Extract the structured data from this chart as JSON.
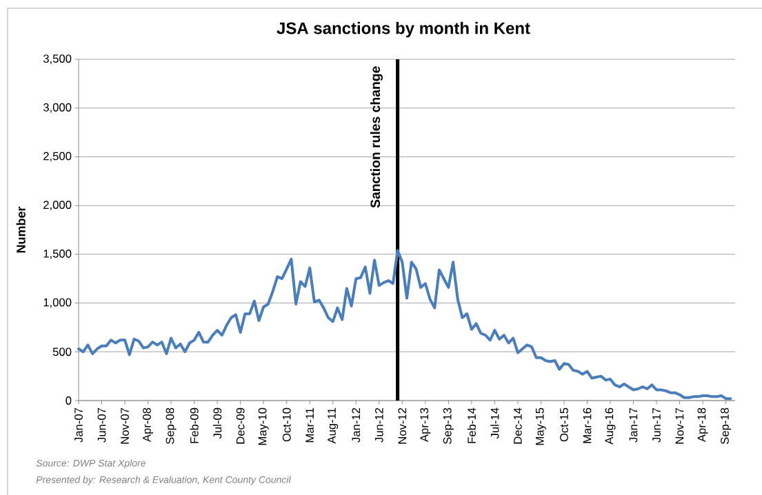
{
  "chart_data": {
    "type": "line",
    "title": "JSA sanctions by month in Kent",
    "ylabel": "Number",
    "annotations": [
      "Source: DWP Stat Xplore",
      "Presented by: Research & Evaluation, Kent County Council"
    ],
    "x": [
      "2007-01",
      "2007-02",
      "2007-03",
      "2007-04",
      "2007-05",
      "2007-06",
      "2007-07",
      "2007-08",
      "2007-09",
      "2007-10",
      "2007-11",
      "2007-12",
      "2008-01",
      "2008-02",
      "2008-03",
      "2008-04",
      "2008-05",
      "2008-06",
      "2008-07",
      "2008-08",
      "2008-09",
      "2008-10",
      "2008-11",
      "2008-12",
      "2009-01",
      "2009-02",
      "2009-03",
      "2009-04",
      "2009-05",
      "2009-06",
      "2009-07",
      "2009-08",
      "2009-09",
      "2009-10",
      "2009-11",
      "2009-12",
      "2010-01",
      "2010-02",
      "2010-03",
      "2010-04",
      "2010-05",
      "2010-06",
      "2010-07",
      "2010-08",
      "2010-09",
      "2010-10",
      "2010-11",
      "2010-12",
      "2011-01",
      "2011-02",
      "2011-03",
      "2011-04",
      "2011-05",
      "2011-06",
      "2011-07",
      "2011-08",
      "2011-09",
      "2011-10",
      "2011-11",
      "2011-12",
      "2012-01",
      "2012-02",
      "2012-03",
      "2012-04",
      "2012-05",
      "2012-06",
      "2012-07",
      "2012-08",
      "2012-09",
      "2012-10",
      "2012-11",
      "2012-12",
      "2013-01",
      "2013-02",
      "2013-03",
      "2013-04",
      "2013-05",
      "2013-06",
      "2013-07",
      "2013-08",
      "2013-09",
      "2013-10",
      "2013-11",
      "2013-12",
      "2014-01",
      "2014-02",
      "2014-03",
      "2014-04",
      "2014-05",
      "2014-06",
      "2014-07",
      "2014-08",
      "2014-09",
      "2014-10",
      "2014-11",
      "2014-12",
      "2015-01",
      "2015-02",
      "2015-03",
      "2015-04",
      "2015-05",
      "2015-06",
      "2015-07",
      "2015-08",
      "2015-09",
      "2015-10",
      "2015-11",
      "2015-12",
      "2016-01",
      "2016-02",
      "2016-03",
      "2016-04",
      "2016-05",
      "2016-06",
      "2016-07",
      "2016-08",
      "2016-09",
      "2016-10",
      "2016-11",
      "2016-12",
      "2017-01",
      "2017-02",
      "2017-03",
      "2017-04",
      "2017-05",
      "2017-06",
      "2017-07",
      "2017-08",
      "2017-09",
      "2017-10",
      "2017-11",
      "2017-12",
      "2018-01",
      "2018-02",
      "2018-03",
      "2018-04",
      "2018-05",
      "2018-06",
      "2018-07",
      "2018-08",
      "2018-09",
      "2018-10"
    ],
    "values": [
      530,
      500,
      570,
      480,
      530,
      560,
      560,
      620,
      590,
      620,
      620,
      470,
      630,
      610,
      540,
      550,
      600,
      570,
      600,
      480,
      640,
      540,
      580,
      500,
      590,
      620,
      700,
      600,
      600,
      670,
      720,
      670,
      770,
      850,
      880,
      700,
      890,
      890,
      1020,
      820,
      960,
      990,
      1120,
      1270,
      1250,
      1350,
      1450,
      990,
      1220,
      1170,
      1360,
      1010,
      1030,
      950,
      850,
      810,
      950,
      830,
      1150,
      970,
      1250,
      1260,
      1370,
      1100,
      1440,
      1180,
      1210,
      1230,
      1200,
      1540,
      1420,
      1050,
      1420,
      1350,
      1160,
      1200,
      1040,
      950,
      1340,
      1250,
      1160,
      1420,
      1040,
      850,
      890,
      730,
      790,
      690,
      670,
      620,
      720,
      630,
      670,
      590,
      640,
      490,
      530,
      570,
      550,
      440,
      440,
      410,
      400,
      410,
      320,
      380,
      370,
      310,
      300,
      270,
      300,
      230,
      240,
      250,
      210,
      220,
      160,
      140,
      170,
      140,
      110,
      120,
      140,
      120,
      160,
      110,
      110,
      100,
      80,
      80,
      60,
      30,
      30,
      40,
      40,
      50,
      50,
      40,
      40,
      50,
      20,
      20
    ],
    "color": "#4a7ebb",
    "xlim": [
      "2007-01",
      "2018-11"
    ],
    "xticks": [
      {
        "value": "2007-01",
        "label": "Jan-07"
      },
      {
        "value": "2007-06",
        "label": "Jun-07"
      },
      {
        "value": "2007-11",
        "label": "Nov-07"
      },
      {
        "value": "2008-04",
        "label": "Apr-08"
      },
      {
        "value": "2008-09",
        "label": "Sep-08"
      },
      {
        "value": "2009-02",
        "label": "Feb-09"
      },
      {
        "value": "2009-07",
        "label": "Jul-09"
      },
      {
        "value": "2009-12",
        "label": "Dec-09"
      },
      {
        "value": "2010-05",
        "label": "May-10"
      },
      {
        "value": "2010-10",
        "label": "Oct-10"
      },
      {
        "value": "2011-03",
        "label": "Mar-11"
      },
      {
        "value": "2011-08",
        "label": "Aug-11"
      },
      {
        "value": "2012-01",
        "label": "Jan-12"
      },
      {
        "value": "2012-06",
        "label": "Jun-12"
      },
      {
        "value": "2012-11",
        "label": "Nov-12"
      },
      {
        "value": "2013-04",
        "label": "Apr-13"
      },
      {
        "value": "2013-09",
        "label": "Sep-13"
      },
      {
        "value": "2014-02",
        "label": "Feb-14"
      },
      {
        "value": "2014-07",
        "label": "Jul-14"
      },
      {
        "value": "2014-12",
        "label": "Dec-14"
      },
      {
        "value": "2015-05",
        "label": "May-15"
      },
      {
        "value": "2015-10",
        "label": "Oct-15"
      },
      {
        "value": "2016-03",
        "label": "Mar-16"
      },
      {
        "value": "2016-08",
        "label": "Aug-16"
      },
      {
        "value": "2017-01",
        "label": "Jan-17"
      },
      {
        "value": "2017-06",
        "label": "Jun-17"
      },
      {
        "value": "2017-11",
        "label": "Nov-17"
      },
      {
        "value": "2018-04",
        "label": "Apr-18"
      },
      {
        "value": "2018-09",
        "label": "Sep-18"
      }
    ],
    "ylim": [
      0,
      3500
    ],
    "yticks": [
      0,
      500,
      {
        "value": 1000,
        "label": "1,000"
      },
      {
        "value": 1500,
        "label": "1,500"
      },
      {
        "value": 2000,
        "label": "2,000"
      },
      {
        "value": 2500,
        "label": "2,500"
      },
      {
        "value": 3000,
        "label": "3,000"
      },
      {
        "value": 3500,
        "label": "3,500"
      }
    ],
    "grid": "y",
    "ref_lines": [
      {
        "axis": "x",
        "value": "2012-10",
        "label": "Sanction rules change",
        "color": "#000000"
      }
    ]
  }
}
